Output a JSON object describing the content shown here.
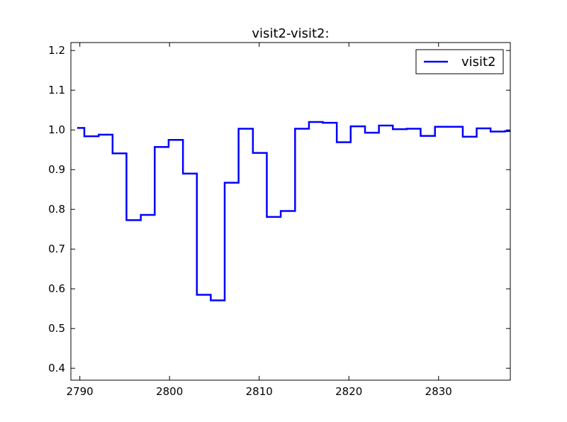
{
  "chart_data": {
    "type": "line",
    "title": "visit2-visit2:",
    "xlabel": "",
    "ylabel": "",
    "xlim": [
      2789,
      2838
    ],
    "ylim": [
      0.37,
      1.22
    ],
    "xticks": [
      2790,
      2800,
      2810,
      2820,
      2830
    ],
    "yticks": [
      0.4,
      0.5,
      0.6,
      0.7,
      0.8,
      0.9,
      1.0,
      1.1,
      1.2
    ],
    "xtick_labels": [
      "2790",
      "2800",
      "2810",
      "2820",
      "2830"
    ],
    "ytick_labels": [
      "0.4",
      "0.5",
      "0.6",
      "0.7",
      "0.8",
      "0.9",
      "1.0",
      "1.1",
      "1.2"
    ],
    "grid": false,
    "legend_position": "top-right",
    "series": [
      {
        "name": "visit2",
        "color": "#0000ff",
        "drawstyle": "steps-mid",
        "x": [
          2789.7,
          2791.3,
          2792.9,
          2794.4,
          2796.0,
          2797.6,
          2799.1,
          2800.7,
          2802.3,
          2803.8,
          2805.4,
          2806.9,
          2808.5,
          2810.1,
          2811.6,
          2813.2,
          2814.8,
          2816.3,
          2817.9,
          2819.4,
          2821.0,
          2822.6,
          2824.1,
          2825.7,
          2827.2,
          2828.8,
          2830.4,
          2831.9,
          2833.5,
          2835.0,
          2836.6,
          2838.2
        ],
        "y": [
          1.005,
          0.984,
          0.988,
          0.941,
          0.773,
          0.786,
          0.957,
          0.975,
          0.89,
          0.585,
          0.571,
          0.867,
          1.003,
          0.942,
          0.781,
          0.796,
          1.003,
          1.02,
          1.018,
          0.969,
          1.009,
          0.993,
          1.011,
          1.002,
          1.003,
          0.985,
          1.008,
          1.008,
          0.983,
          1.004,
          0.996,
          0.997
        ]
      }
    ]
  }
}
